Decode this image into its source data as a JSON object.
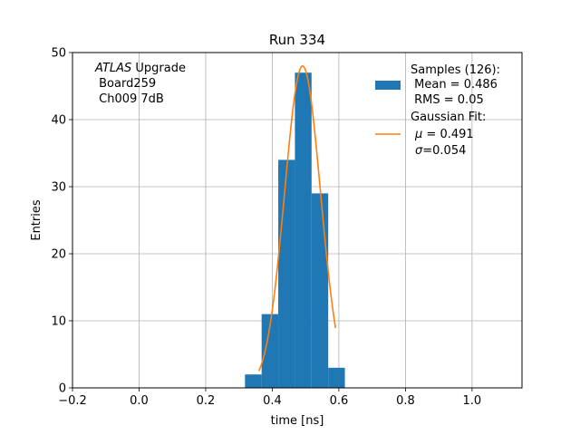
{
  "chart_data": {
    "type": "bar",
    "title": "Run 334",
    "xlabel": "time [ns]",
    "ylabel": "Entries",
    "xlim": [
      -0.2,
      1.15
    ],
    "ylim": [
      0,
      50
    ],
    "xticks": [
      -0.2,
      0.0,
      0.2,
      0.4,
      0.6,
      0.8,
      1.0
    ],
    "xtick_labels": [
      "−0.2",
      "0.0",
      "0.2",
      "0.4",
      "0.6",
      "0.8",
      "1.0"
    ],
    "yticks": [
      0,
      10,
      20,
      30,
      40,
      50
    ],
    "ytick_labels": [
      "0",
      "10",
      "20",
      "30",
      "40",
      "50"
    ],
    "grid": true,
    "legend_position": "top-right",
    "histogram": {
      "bin_edges": [
        0.318,
        0.368,
        0.418,
        0.468,
        0.518,
        0.568,
        0.618
      ],
      "counts": [
        2,
        11,
        34,
        47,
        29,
        3
      ],
      "color": "#1f77b4"
    },
    "fit": {
      "amplitude": 48,
      "mu": 0.491,
      "sigma": 0.054,
      "x_range": [
        0.36,
        0.59
      ],
      "color": "#ff7f0e"
    },
    "legend": {
      "samples_line1": "Samples (126):",
      "samples_line2": " Mean = 0.486",
      "samples_line3": " RMS = 0.05",
      "fit_line1": "Gaussian Fit:",
      "fit_mu_symbol": "μ",
      "fit_mu_value": " = 0.491",
      "fit_sigma_symbol": "σ",
      "fit_sigma_value": "=0.054"
    },
    "annotation": {
      "line1_italic": "ATLAS",
      "line1_rest": " Upgrade",
      "line2": " Board259",
      "line3": " Ch009 7dB"
    }
  }
}
